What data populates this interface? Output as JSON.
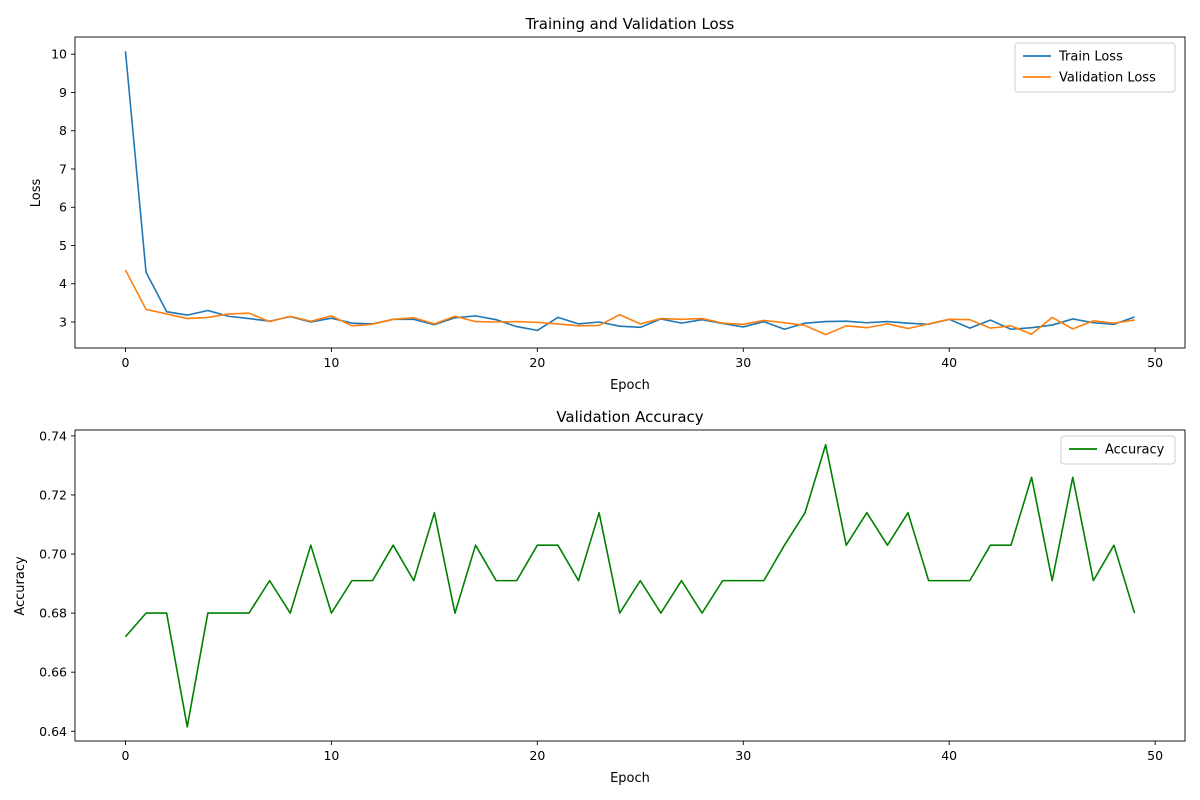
{
  "chart_data": [
    {
      "type": "line",
      "title": "Training and Validation Loss",
      "xlabel": "Epoch",
      "ylabel": "Loss",
      "xlim": [
        -2.45,
        51.45
      ],
      "ylim": [
        2.32,
        10.45
      ],
      "xticks": [
        0,
        10,
        20,
        30,
        40,
        50
      ],
      "yticks": [
        3,
        4,
        5,
        6,
        7,
        8,
        9,
        10
      ],
      "legend_position": "top-right",
      "x": [
        0,
        1,
        2,
        3,
        4,
        5,
        6,
        7,
        8,
        9,
        10,
        11,
        12,
        13,
        14,
        15,
        16,
        17,
        18,
        19,
        20,
        21,
        22,
        23,
        24,
        25,
        26,
        27,
        28,
        29,
        30,
        31,
        32,
        33,
        34,
        35,
        36,
        37,
        38,
        39,
        40,
        41,
        42,
        43,
        44,
        45,
        46,
        47,
        48,
        49
      ],
      "series": [
        {
          "name": "Train Loss",
          "color": "#1f77b4",
          "values": [
            10.08,
            4.3,
            3.27,
            3.18,
            3.3,
            3.15,
            3.09,
            3.02,
            3.14,
            3.0,
            3.1,
            2.97,
            2.95,
            3.07,
            3.07,
            2.93,
            3.11,
            3.16,
            3.06,
            2.88,
            2.78,
            3.12,
            2.95,
            3.0,
            2.89,
            2.86,
            3.08,
            2.97,
            3.06,
            2.96,
            2.87,
            3.01,
            2.81,
            2.97,
            3.01,
            3.02,
            2.98,
            3.01,
            2.97,
            2.94,
            3.07,
            2.84,
            3.05,
            2.81,
            2.85,
            2.92,
            3.08,
            2.98,
            2.94,
            3.13
          ]
        },
        {
          "name": "Validation Loss",
          "color": "#ff7f0e",
          "values": [
            4.36,
            3.33,
            3.21,
            3.09,
            3.12,
            3.21,
            3.23,
            3.01,
            3.15,
            3.02,
            3.16,
            2.9,
            2.94,
            3.07,
            3.11,
            2.95,
            3.15,
            3.01,
            3.0,
            3.01,
            2.99,
            2.95,
            2.9,
            2.91,
            3.19,
            2.95,
            3.09,
            3.07,
            3.09,
            2.97,
            2.94,
            3.04,
            2.98,
            2.91,
            2.67,
            2.9,
            2.85,
            2.95,
            2.83,
            2.95,
            3.07,
            3.06,
            2.84,
            2.9,
            2.68,
            3.12,
            2.82,
            3.03,
            2.97,
            3.05
          ]
        }
      ]
    },
    {
      "type": "line",
      "title": "Validation Accuracy",
      "xlabel": "Epoch",
      "ylabel": "Accuracy",
      "xlim": [
        -2.45,
        51.45
      ],
      "ylim": [
        0.6367,
        0.742
      ],
      "xticks": [
        0,
        10,
        20,
        30,
        40,
        50
      ],
      "yticks": [
        0.64,
        0.66,
        0.68,
        0.7,
        0.72,
        0.74
      ],
      "legend_position": "top-right",
      "x": [
        0,
        1,
        2,
        3,
        4,
        5,
        6,
        7,
        8,
        9,
        10,
        11,
        12,
        13,
        14,
        15,
        16,
        17,
        18,
        19,
        20,
        21,
        22,
        23,
        24,
        25,
        26,
        27,
        28,
        29,
        30,
        31,
        32,
        33,
        34,
        35,
        36,
        37,
        38,
        39,
        40,
        41,
        42,
        43,
        44,
        45,
        46,
        47,
        48,
        49
      ],
      "series": [
        {
          "name": "Accuracy",
          "color": "#008000",
          "values": [
            0.672,
            0.68,
            0.68,
            0.6415,
            0.68,
            0.68,
            0.68,
            0.691,
            0.68,
            0.703,
            0.68,
            0.691,
            0.691,
            0.703,
            0.691,
            0.714,
            0.68,
            0.703,
            0.691,
            0.691,
            0.703,
            0.703,
            0.691,
            0.714,
            0.68,
            0.691,
            0.68,
            0.691,
            0.68,
            0.691,
            0.691,
            0.691,
            0.703,
            0.714,
            0.737,
            0.703,
            0.714,
            0.703,
            0.714,
            0.691,
            0.691,
            0.691,
            0.703,
            0.703,
            0.726,
            0.691,
            0.726,
            0.691,
            0.703,
            0.68
          ]
        }
      ]
    }
  ]
}
